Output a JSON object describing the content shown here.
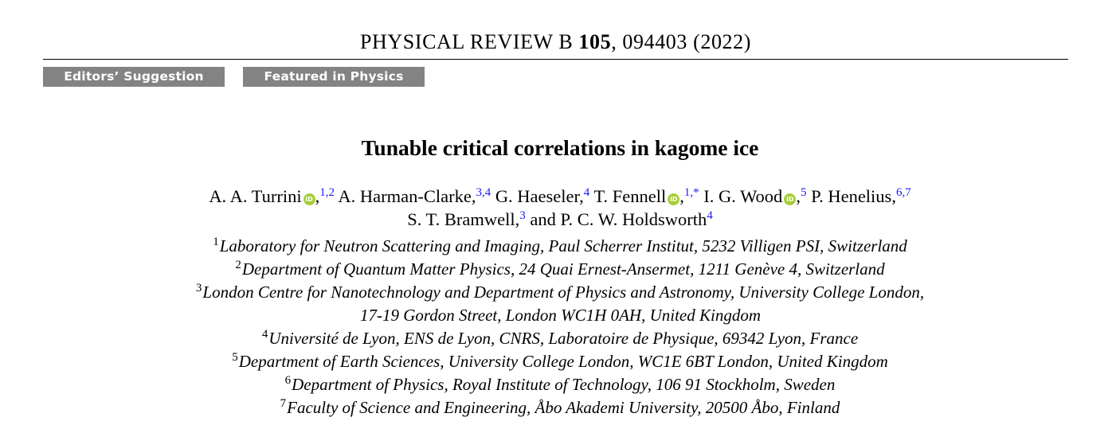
{
  "journal": {
    "name": "PHYSICAL REVIEW B",
    "volume": "105",
    "article": ", 094403 (2022)"
  },
  "badges": [
    {
      "label": "Editors’ Suggestion"
    },
    {
      "label": "Featured in Physics"
    }
  ],
  "title": "Tunable critical correlations in kagome ice",
  "authors": [
    {
      "name": "A. A. Turrini",
      "orcid": true,
      "sep": ",",
      "sup": "1,2"
    },
    {
      "name": "A. Harman-Clarke",
      "orcid": false,
      "sep": ",",
      "sup": "3,4"
    },
    {
      "name": "G. Haeseler",
      "orcid": false,
      "sep": ",",
      "sup": "4"
    },
    {
      "name": "T. Fennell",
      "orcid": true,
      "sep": ",",
      "sup": "1,*"
    },
    {
      "name": "I. G. Wood",
      "orcid": true,
      "sep": ",",
      "sup": "5"
    },
    {
      "name": "P. Henelius",
      "orcid": false,
      "sep": ",",
      "sup": "6,7"
    },
    {
      "name": "S. T. Bramwell",
      "orcid": false,
      "sep": ",",
      "sup": "3"
    },
    {
      "name": "and P. C. W. Holdsworth",
      "orcid": false,
      "sep": "",
      "sup": "4"
    }
  ],
  "affiliations": [
    {
      "num": "1",
      "text": "Laboratory for Neutron Scattering and Imaging, Paul Scherrer Institut, 5232 Villigen PSI, Switzerland"
    },
    {
      "num": "2",
      "text": "Department of Quantum Matter Physics, 24 Quai Ernest-Ansermet, 1211 Genève 4, Switzerland"
    },
    {
      "num": "3",
      "text": "London Centre for Nanotechnology and Department of Physics and Astronomy, University College London,"
    },
    {
      "num": "",
      "text": "17-19 Gordon Street, London WC1H 0AH, United Kingdom"
    },
    {
      "num": "4",
      "text": "Université de Lyon, ENS de Lyon, CNRS, Laboratoire de Physique, 69342 Lyon, France"
    },
    {
      "num": "5",
      "text": "Department of Earth Sciences, University College London, WC1E 6BT London, United Kingdom"
    },
    {
      "num": "6",
      "text": "Department of Physics, Royal Institute of Technology, 106 91 Stockholm, Sweden"
    },
    {
      "num": "7",
      "text": "Faculty of Science and Engineering, Åbo Akademi University, 20500 Åbo, Finland"
    }
  ],
  "colors": {
    "badge_bg": "#838383",
    "orcid": "#a6ce39",
    "link": "#1a1aff"
  },
  "icons": {
    "orcid": "orcid-icon"
  }
}
